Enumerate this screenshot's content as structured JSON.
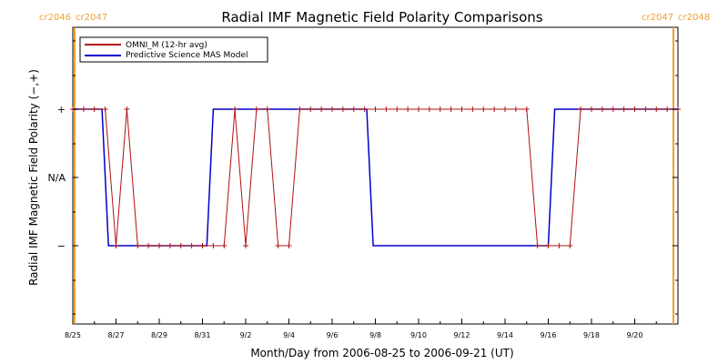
{
  "chart_data": {
    "type": "line",
    "title": "Radial IMF Magnetic Field Polarity Comparisons",
    "xlabel": "Month/Day from 2006-08-25 to 2006-09-21 (UT)",
    "ylabel": "Radial IMF Magnetic Field Polarity (−,+)",
    "x_tick_labels": [
      "8/25",
      "8/27",
      "8/29",
      "8/31",
      "9/2",
      "9/4",
      "9/6",
      "9/8",
      "9/10",
      "9/12",
      "9/14",
      "9/16",
      "9/18",
      "9/20"
    ],
    "x_range_days": [
      0,
      28
    ],
    "y_tick_labels": [
      "+",
      "N/A",
      "−"
    ],
    "y_categories": {
      "plus": 1,
      "na": 0,
      "minus": -1
    },
    "ylim": [
      -2,
      2
    ],
    "carrington_markers": [
      {
        "label_left": "cr2046",
        "label_right": "cr2047",
        "day": 0.0
      },
      {
        "label_left": "cr2047",
        "label_right": "cr2048",
        "day": 28.0
      }
    ],
    "colors": {
      "omni": "#b01010",
      "model": "#0000cc",
      "cr": "#f0a030",
      "axis": "#000000"
    },
    "series": [
      {
        "name": "OMNI_M (12-hr avg)",
        "x": [
          0.0,
          0.5,
          1.0,
          1.5,
          2.0,
          2.5,
          3.0,
          3.5,
          4.0,
          4.5,
          5.0,
          5.5,
          6.0,
          6.5,
          7.0,
          7.5,
          8.0,
          8.5,
          9.0,
          9.5,
          10.0,
          10.5,
          11.0,
          11.5,
          12.0,
          12.5,
          13.0,
          13.5,
          14.0,
          14.5,
          15.0,
          15.5,
          16.0,
          16.5,
          17.0,
          17.5,
          18.0,
          18.5,
          19.0,
          19.5,
          20.0,
          20.5,
          21.0,
          21.5,
          22.0,
          22.5,
          23.0,
          23.5,
          24.0,
          24.5,
          25.0,
          25.5,
          26.0,
          26.5,
          27.0,
          27.5,
          28.0
        ],
        "y": [
          1,
          1,
          1,
          1,
          -1,
          1,
          -1,
          -1,
          -1,
          -1,
          -1,
          -1,
          -1,
          -1,
          -1,
          1,
          -1,
          1,
          1,
          -1,
          -1,
          1,
          1,
          1,
          1,
          1,
          1,
          1,
          1,
          1,
          1,
          1,
          1,
          1,
          1,
          1,
          1,
          1,
          1,
          1,
          1,
          1,
          1,
          -1,
          -1,
          -1,
          -1,
          1,
          1,
          1,
          1,
          1,
          1,
          1,
          1,
          1,
          1
        ]
      },
      {
        "name": "Predictive Science MAS Model",
        "x": [
          0.0,
          1.35,
          1.65,
          6.2,
          6.5,
          13.6,
          13.9,
          22.0,
          22.3,
          28.0
        ],
        "y": [
          1,
          1,
          -1,
          -1,
          1,
          1,
          -1,
          -1,
          1,
          1
        ]
      }
    ]
  }
}
